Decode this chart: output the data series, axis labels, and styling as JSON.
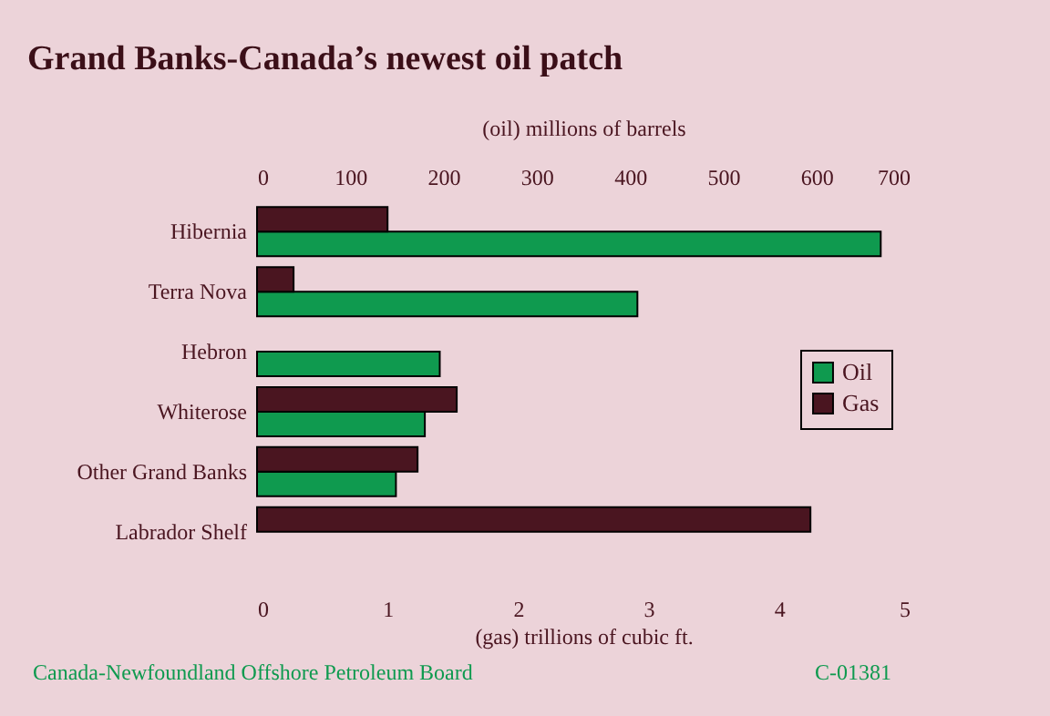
{
  "chart_data": {
    "type": "bar",
    "orientation": "horizontal",
    "title": "Grand Banks-Canada’s newest oil patch",
    "categories": [
      "Hibernia",
      "Terra Nova",
      "Hebron",
      "Whiterose",
      "Other Grand Banks",
      "Labrador Shelf"
    ],
    "series": [
      {
        "name": "Oil",
        "color": "#0f9a4f",
        "axis": "x2",
        "values": [
          669,
          408,
          196,
          180,
          149,
          null
        ]
      },
      {
        "name": "Gas",
        "color": "#4a1520",
        "values": [
          1.0,
          0.28,
          null,
          1.53,
          1.23,
          4.24
        ]
      }
    ],
    "xlim": [
      0,
      5
    ],
    "xticks": [
      0,
      1,
      2,
      3,
      4,
      5
    ],
    "xlabel": "(gas) trillions of cubic ft.",
    "x2lim": [
      0,
      700
    ],
    "x2ticks": [
      0,
      100,
      200,
      300,
      400,
      500,
      600,
      700
    ],
    "x2label": "(oil) millions of barrels",
    "legend": "right",
    "grid": false,
    "annotations": [
      "Canada-Newfoundland Offshore Petroleum Board",
      "C-01381"
    ]
  }
}
